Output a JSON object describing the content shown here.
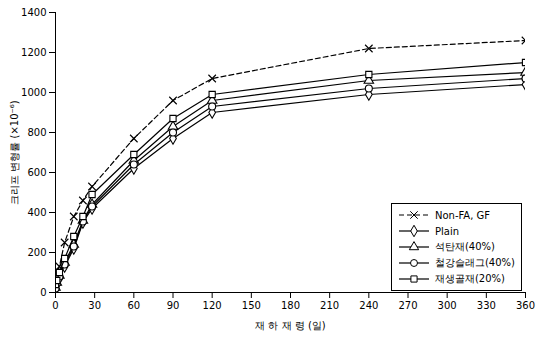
{
  "chart_data": {
    "type": "line",
    "x_label": "재 하 재 령 (일)",
    "y_label": "크리프 변형률 (×10⁻⁶)",
    "x": [
      0,
      1,
      3,
      7,
      14,
      21,
      28,
      60,
      90,
      120,
      240,
      360
    ],
    "xlim": [
      0,
      360
    ],
    "xticks": [
      0,
      30,
      60,
      90,
      120,
      150,
      180,
      210,
      240,
      270,
      300,
      330,
      360
    ],
    "ylim": [
      0,
      1400
    ],
    "yticks": [
      0,
      200,
      400,
      600,
      800,
      1000,
      1200,
      1400
    ],
    "grid": false,
    "legend": "lower right",
    "series": [
      {
        "name": "Non-FA, GF",
        "color": "#000000",
        "marker": "x",
        "line_style": "dashed",
        "values": [
          30,
          100,
          130,
          250,
          380,
          460,
          530,
          770,
          960,
          1070,
          1220,
          1260
        ]
      },
      {
        "name": "Plain",
        "color": "#000000",
        "marker": "diamond",
        "line_style": "solid",
        "values": [
          20,
          40,
          70,
          130,
          220,
          350,
          420,
          620,
          770,
          900,
          990,
          1040
        ]
      },
      {
        "name": "석탄재(40%)",
        "color": "#000000",
        "marker": "triangle",
        "line_style": "solid",
        "values": [
          25,
          50,
          85,
          150,
          240,
          360,
          440,
          660,
          830,
          960,
          1060,
          1100
        ]
      },
      {
        "name": "철강슬래그(40%)",
        "color": "#000000",
        "marker": "circle",
        "line_style": "solid",
        "values": [
          20,
          45,
          80,
          140,
          230,
          355,
          430,
          640,
          800,
          930,
          1020,
          1070
        ]
      },
      {
        "name": "재생골재(20%)",
        "color": "#000000",
        "marker": "square",
        "line_style": "solid",
        "values": [
          40,
          60,
          100,
          170,
          280,
          380,
          490,
          690,
          870,
          990,
          1090,
          1150
        ]
      }
    ]
  }
}
